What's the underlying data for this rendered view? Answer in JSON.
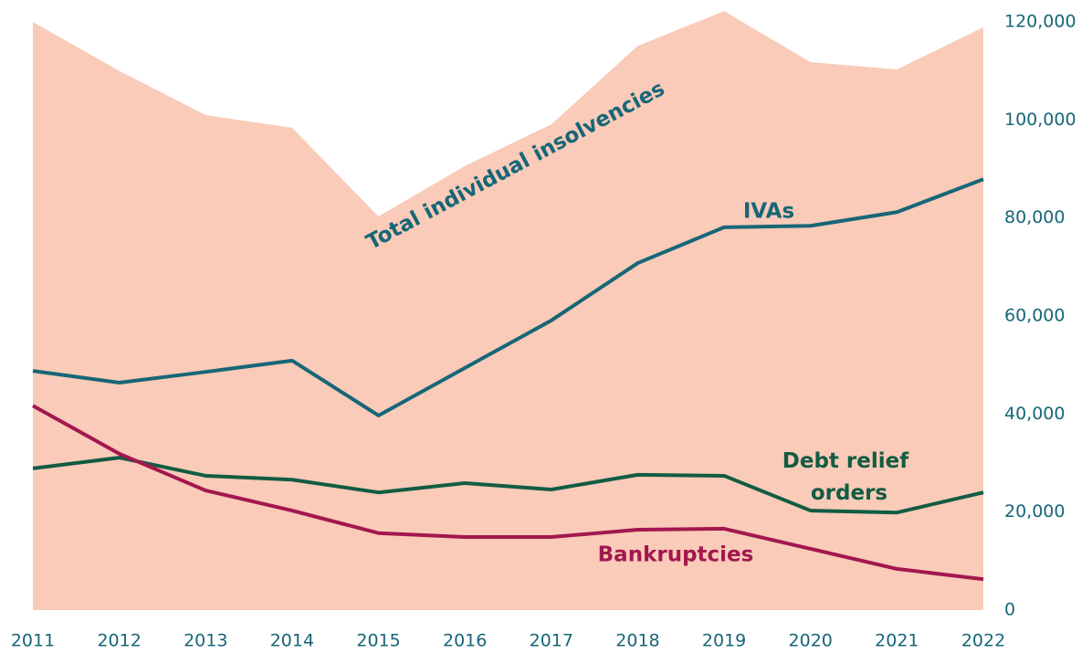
{
  "chart_data": {
    "type": "line",
    "categories": [
      "2011",
      "2012",
      "2013",
      "2014",
      "2015",
      "2016",
      "2017",
      "2018",
      "2019",
      "2020",
      "2021",
      "2022"
    ],
    "series": [
      {
        "name": "Total individual insolvencies",
        "kind": "area",
        "color": "#f9cbb8",
        "values": [
          120000,
          110000,
          101000,
          98400,
          80300,
          90600,
          99100,
          115100,
          122200,
          111800,
          110300,
          118900
        ]
      },
      {
        "name": "IVAs",
        "kind": "line",
        "color": "#176678",
        "values": [
          48800,
          46400,
          48600,
          50900,
          39700,
          49400,
          59100,
          70800,
          78100,
          78400,
          81200,
          87900
        ]
      },
      {
        "name": "Debt relief orders",
        "kind": "line",
        "color": "#115c43",
        "values": [
          28900,
          31100,
          27400,
          26600,
          24000,
          25900,
          24600,
          27600,
          27400,
          20300,
          19900,
          24000
        ]
      },
      {
        "name": "Bankruptcies",
        "kind": "line",
        "color": "#a3174f",
        "values": [
          41700,
          31900,
          24400,
          20300,
          15700,
          14900,
          14900,
          16400,
          16600,
          12500,
          8400,
          6300
        ]
      }
    ],
    "ylim": [
      0,
      120000
    ],
    "yticks": [
      0,
      {
        "value": 20000,
        "label": "20,000"
      },
      {
        "value": 40000,
        "label": "40,000"
      },
      {
        "value": 60000,
        "label": "60,000"
      },
      {
        "value": 80000,
        "label": "80,000"
      },
      {
        "value": 100000,
        "label": "100,000"
      },
      {
        "value": 120000,
        "label": "120,000"
      }
    ]
  }
}
